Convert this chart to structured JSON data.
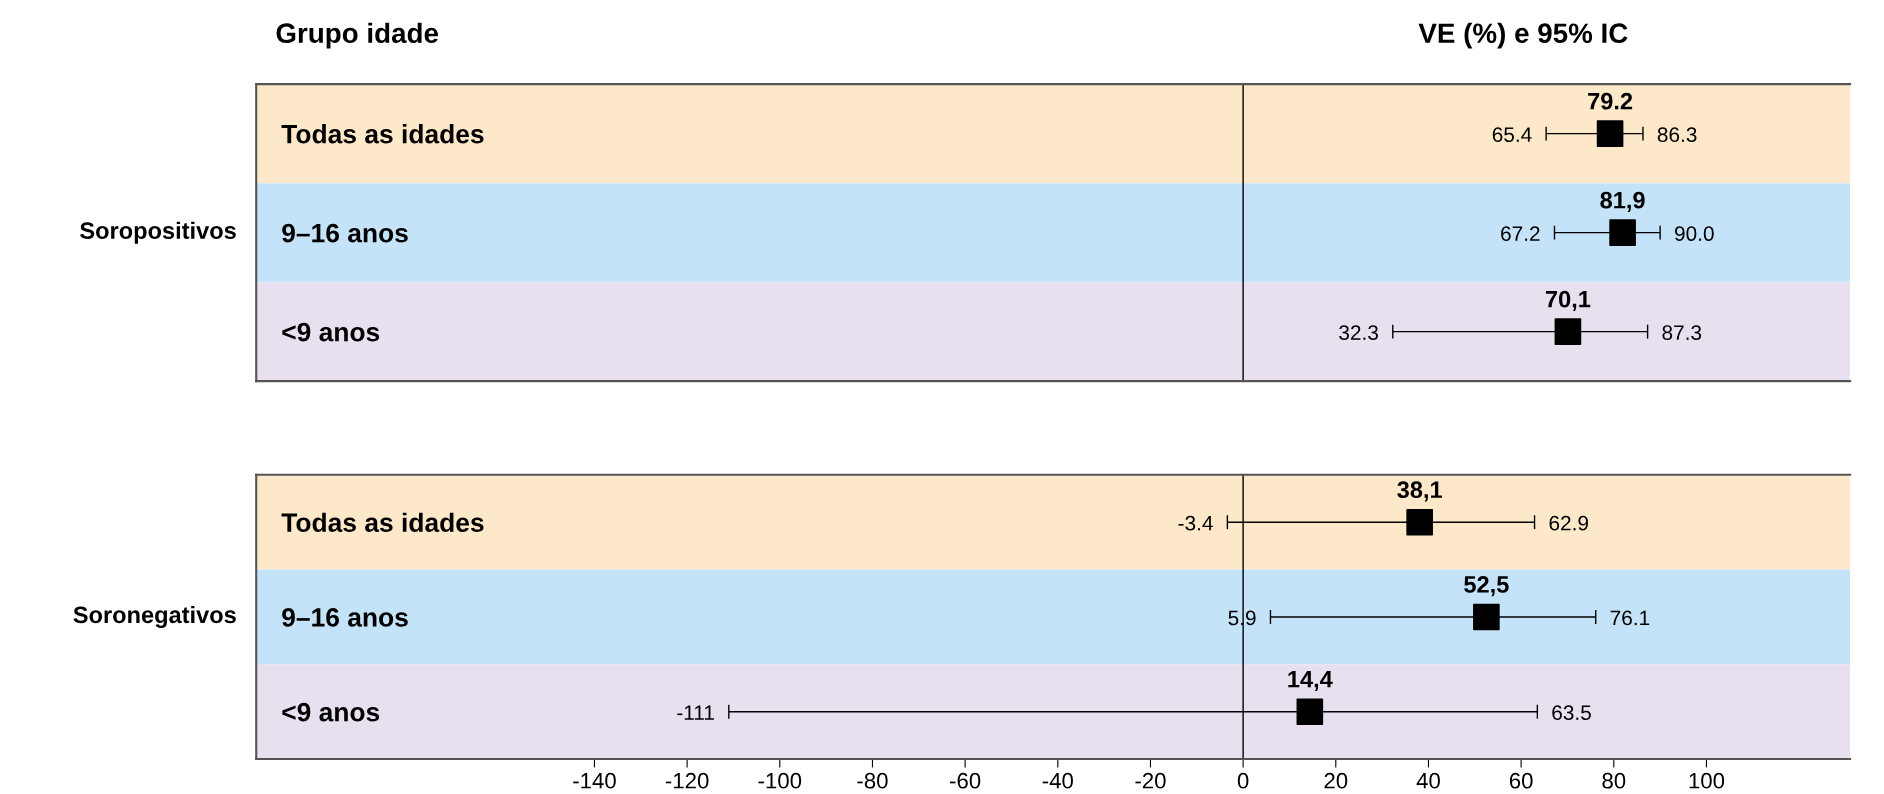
{
  "chart_data": [
    {
      "type": "scatter",
      "orientation": "horizontal",
      "title": "VE (%) e 95% IC",
      "ylabel": "Soropositivos",
      "annotations": [
        "Grupo idade",
        {
          "text": "65.4",
          "x": 65.4,
          "y": "Todas as idades"
        },
        {
          "text": "86.3",
          "x": 86.3,
          "y": "Todas as idades"
        },
        {
          "text": "67.2",
          "x": 67.2,
          "y": "9–16 anos"
        },
        {
          "text": "90.0",
          "x": 90.0,
          "y": "9–16 anos"
        },
        {
          "text": "32.3",
          "x": 32.3,
          "y": "<9 anos"
        },
        {
          "text": "87.3",
          "x": 87.3,
          "y": "<9 anos"
        }
      ],
      "categories": [
        "Todas as idades",
        "9–16 anos",
        "<9 anos"
      ],
      "series": [
        {
          "color": "#000000",
          "values": [
            79.2,
            81.9,
            70.1
          ],
          "errors": [
            [
              65.4,
              86.3
            ],
            [
              67.2,
              90.0
            ],
            [
              32.3,
              87.3
            ]
          ],
          "value_labels": [
            "79.2",
            "81,9",
            "70,1"
          ]
        }
      ],
      "marker": "square",
      "xlim": [
        -213,
        131
      ],
      "xticks": [
        -140,
        -120,
        -100,
        -80,
        -60,
        -40,
        -20,
        0,
        20,
        40,
        60,
        80,
        100
      ],
      "tick_labels": "y",
      "ref_lines": [
        {
          "axis": "x",
          "value": 0,
          "color": "#000000"
        }
      ],
      "bands": [
        {
          "axis": "y",
          "from": "Todas as idades",
          "to": "Todas as idades",
          "color": "#fde9c9"
        },
        {
          "axis": "y",
          "from": "9–16 anos",
          "to": "9–16 anos",
          "color": "#c5e3f8"
        },
        {
          "axis": "y",
          "from": "<9 anos",
          "to": "<9 anos",
          "color": "#e8e0ef"
        }
      ],
      "grid": false,
      "legend": false
    },
    {
      "type": "scatter",
      "orientation": "horizontal",
      "ylabel": "Soronegativos",
      "annotations": [
        {
          "text": "-3.4",
          "x": -3.4,
          "y": "Todas as idades"
        },
        {
          "text": "62.9",
          "x": 62.9,
          "y": "Todas as idades"
        },
        {
          "text": "5.9",
          "x": 5.9,
          "y": "9–16 anos"
        },
        {
          "text": "76.1",
          "x": 76.1,
          "y": "9–16 anos"
        },
        {
          "text": "-111",
          "x": -111,
          "y": "<9 anos"
        },
        {
          "text": "63.5",
          "x": 63.5,
          "y": "<9 anos"
        }
      ],
      "categories": [
        "Todas as idades",
        "9–16 anos",
        "<9 anos"
      ],
      "series": [
        {
          "color": "#000000",
          "values": [
            38.1,
            52.5,
            14.4
          ],
          "errors": [
            [
              -3.4,
              62.9
            ],
            [
              5.9,
              76.1
            ],
            [
              -111,
              63.5
            ]
          ],
          "value_labels": [
            "38,1",
            "52,5",
            "14,4"
          ]
        }
      ],
      "marker": "square",
      "xlim": [
        -213,
        131
      ],
      "xticks": [
        -140,
        -120,
        -100,
        -80,
        -60,
        -40,
        -20,
        0,
        20,
        40,
        60,
        80,
        100
      ],
      "ref_lines": [
        {
          "axis": "x",
          "value": 0,
          "color": "#000000"
        }
      ],
      "bands": [
        {
          "axis": "y",
          "from": "Todas as idades",
          "to": "Todas as idades",
          "color": "#fde9c9"
        },
        {
          "axis": "y",
          "from": "9–16 anos",
          "to": "9–16 anos",
          "color": "#c5e3f8"
        },
        {
          "axis": "y",
          "from": "<9 anos",
          "to": "<9 anos",
          "color": "#e8e0ef"
        }
      ],
      "grid": false,
      "legend": false
    }
  ]
}
